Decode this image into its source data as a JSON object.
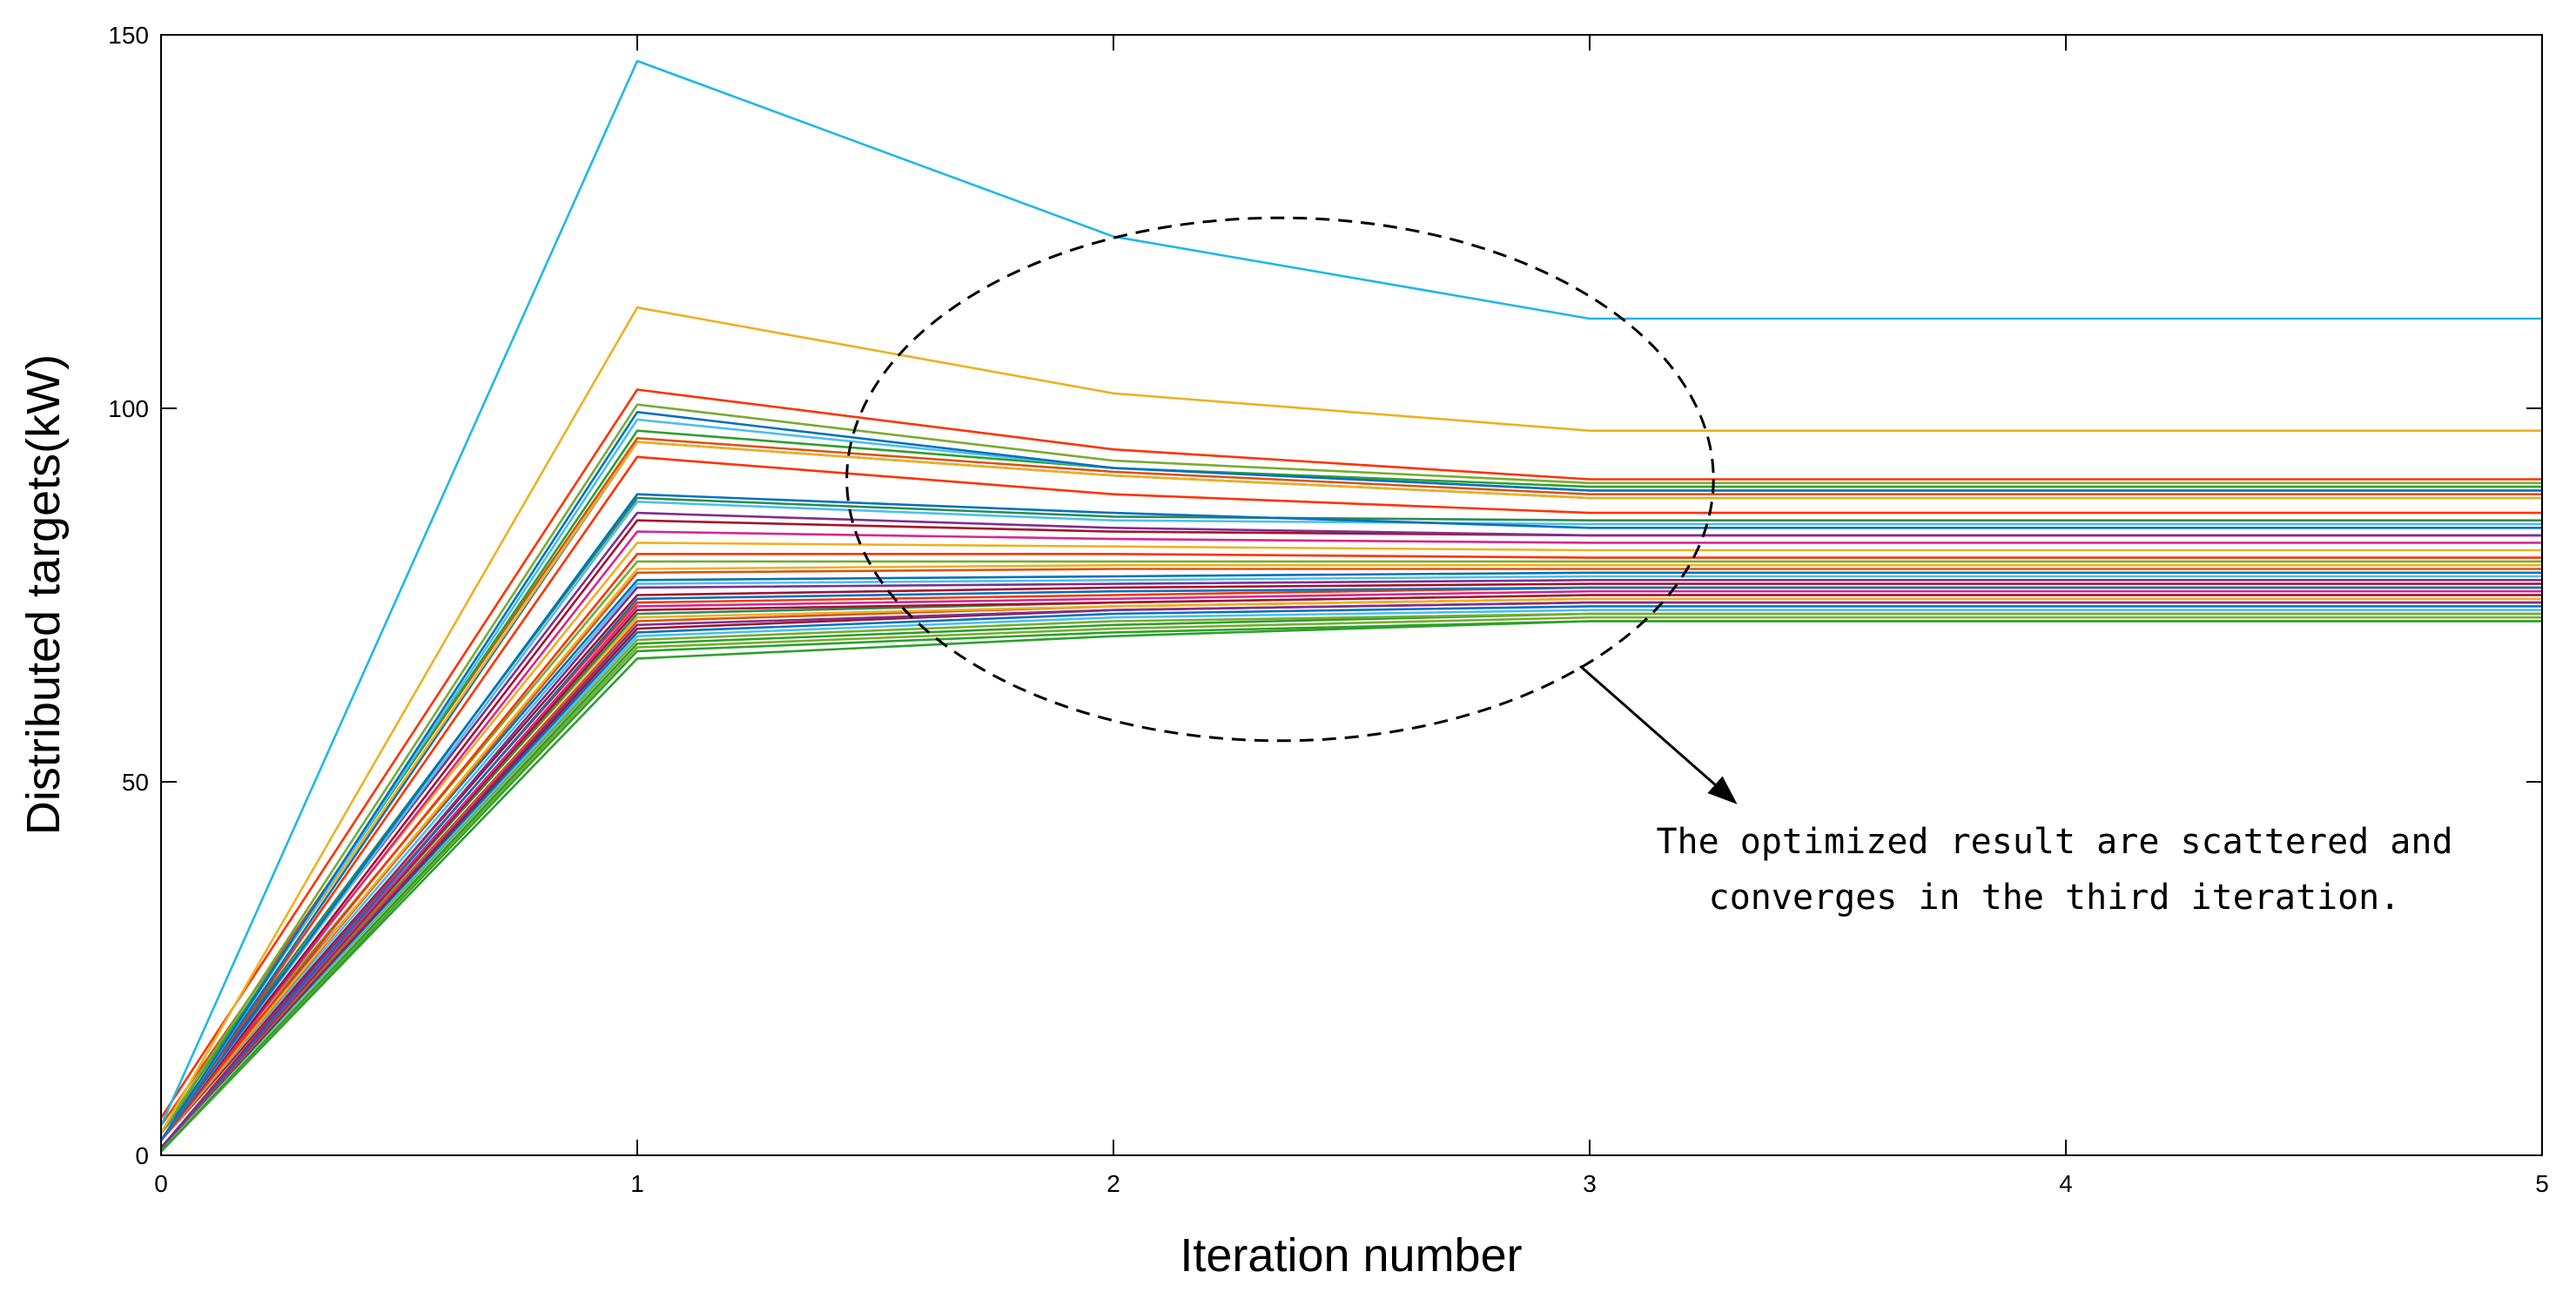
{
  "chart_data": {
    "type": "line",
    "title": "",
    "xlabel": "Iteration number",
    "ylabel": "Distributed targets(kW)",
    "xlim": [
      0,
      5
    ],
    "ylim": [
      0,
      150
    ],
    "xticks": [
      "0",
      "1",
      "2",
      "3",
      "4",
      "5"
    ],
    "yticks": [
      "0",
      "50",
      "100",
      "150"
    ],
    "x": [
      0,
      1,
      2,
      3,
      4,
      5
    ],
    "grid": false,
    "series": [
      {
        "color": "#1fb8e6",
        "values": [
          4,
          146.5,
          123,
          112,
          112,
          112
        ]
      },
      {
        "color": "#edb120",
        "values": [
          3,
          113.5,
          102,
          97,
          97,
          97
        ]
      },
      {
        "color": "#ff3300",
        "values": [
          5,
          102.5,
          94.5,
          90.5,
          90.5,
          90.5
        ]
      },
      {
        "color": "#77ac30",
        "values": [
          3,
          100.5,
          93,
          90,
          90,
          90
        ]
      },
      {
        "color": "#0072bd",
        "values": [
          2,
          99.5,
          92,
          89,
          89,
          89
        ]
      },
      {
        "color": "#4dbeee",
        "values": [
          2,
          98.5,
          92,
          89,
          89,
          89
        ]
      },
      {
        "color": "#2ca02c",
        "values": [
          3,
          97,
          92,
          89.5,
          89.5,
          89.5
        ]
      },
      {
        "color": "#d95319",
        "values": [
          4,
          96,
          91.5,
          88.5,
          88.5,
          88.5
        ]
      },
      {
        "color": "#edb120",
        "values": [
          3,
          95.5,
          91,
          88,
          88,
          88
        ]
      },
      {
        "color": "#0072bd",
        "values": [
          2,
          95.5,
          91,
          88,
          88,
          88
        ]
      },
      {
        "color": "#ff3300",
        "values": [
          2,
          93.5,
          88.5,
          86,
          86,
          86
        ]
      },
      {
        "color": "#0072bd",
        "values": [
          2,
          88.5,
          86,
          84,
          84,
          84
        ]
      },
      {
        "color": "#2e8b57",
        "values": [
          3,
          88,
          85.5,
          85,
          85,
          85
        ]
      },
      {
        "color": "#4dbeee",
        "values": [
          2,
          87.5,
          85,
          84.5,
          84.5,
          84.5
        ]
      },
      {
        "color": "#7e2f8e",
        "values": [
          3,
          86,
          84,
          83,
          83,
          83
        ]
      },
      {
        "color": "#a2142f",
        "values": [
          2,
          85,
          83.5,
          83,
          83,
          83
        ]
      },
      {
        "color": "#d62790",
        "values": [
          2,
          83.5,
          82.5,
          82,
          82,
          82
        ]
      },
      {
        "color": "#edb120",
        "values": [
          3,
          82,
          81.5,
          81,
          81,
          81
        ]
      },
      {
        "color": "#ff3300",
        "values": [
          2,
          80.5,
          80.5,
          80,
          80,
          80
        ]
      },
      {
        "color": "#77ac30",
        "values": [
          3,
          79.5,
          79.5,
          79.5,
          79.5,
          79.5
        ]
      },
      {
        "color": "#edb120",
        "values": [
          2,
          78.5,
          79,
          79,
          79,
          79
        ]
      },
      {
        "color": "#d95319",
        "values": [
          2,
          78,
          78.5,
          78.5,
          78.5,
          78.5
        ]
      },
      {
        "color": "#0072bd",
        "values": [
          3,
          77,
          77.5,
          78,
          78,
          78
        ]
      },
      {
        "color": "#4dbeee",
        "values": [
          2,
          76.5,
          77,
          77.5,
          77.5,
          77.5
        ]
      },
      {
        "color": "#7e2f8e",
        "values": [
          1,
          76,
          76.5,
          77,
          77,
          77
        ]
      },
      {
        "color": "#a2142f",
        "values": [
          2,
          75,
          76,
          76.5,
          76.5,
          76.5
        ]
      },
      {
        "color": "#0072bd",
        "values": [
          1,
          74.5,
          75.5,
          76,
          76,
          76
        ]
      },
      {
        "color": "#ff3300",
        "values": [
          2,
          74,
          75,
          76,
          76,
          76
        ]
      },
      {
        "color": "#d62790",
        "values": [
          1,
          73.5,
          74.5,
          75.5,
          75.5,
          75.5
        ]
      },
      {
        "color": "#a2142f",
        "values": [
          1,
          73,
          74,
          75,
          75,
          75
        ]
      },
      {
        "color": "#2e8b57",
        "values": [
          1,
          72.5,
          74,
          75,
          75,
          75
        ]
      },
      {
        "color": "#edb120",
        "values": [
          2,
          72,
          73.5,
          74.5,
          74.5,
          74.5
        ]
      },
      {
        "color": "#d95319",
        "values": [
          1,
          71.5,
          73.5,
          74.5,
          74.5,
          74.5
        ]
      },
      {
        "color": "#7e2f8e",
        "values": [
          1,
          71,
          73,
          74,
          74,
          74
        ]
      },
      {
        "color": "#a2142f",
        "values": [
          1,
          70.5,
          73,
          74,
          74,
          74
        ]
      },
      {
        "color": "#0072bd",
        "values": [
          1,
          70,
          72.5,
          73.5,
          73.5,
          73.5
        ]
      },
      {
        "color": "#4dbeee",
        "values": [
          1,
          69.5,
          72,
          73,
          73,
          73
        ]
      },
      {
        "color": "#77ac30",
        "values": [
          1,
          69,
          71.5,
          72.5,
          72.5,
          72.5
        ]
      },
      {
        "color": "#2ca02c",
        "values": [
          0.5,
          68.5,
          71,
          72.5,
          72.5,
          72.5
        ]
      },
      {
        "color": "#77ac30",
        "values": [
          0.5,
          68,
          70.5,
          72,
          72,
          72
        ]
      },
      {
        "color": "#2ca02c",
        "values": [
          0.5,
          67.5,
          70,
          71.5,
          71.5,
          71.5
        ]
      },
      {
        "color": "#2ca02c",
        "values": [
          0.5,
          66.5,
          69.5,
          71.5,
          71.5,
          71.5
        ]
      }
    ],
    "annotation": {
      "lines": [
        "The optimized result are scattered and",
        "converges in the third iteration."
      ],
      "ellipse_center": [
        2.35,
        90.5
      ],
      "ellipse_radii": [
        0.91,
        35
      ],
      "arrow_from": [
        2.98,
        65.5
      ],
      "arrow_to": [
        3.31,
        47
      ]
    }
  }
}
